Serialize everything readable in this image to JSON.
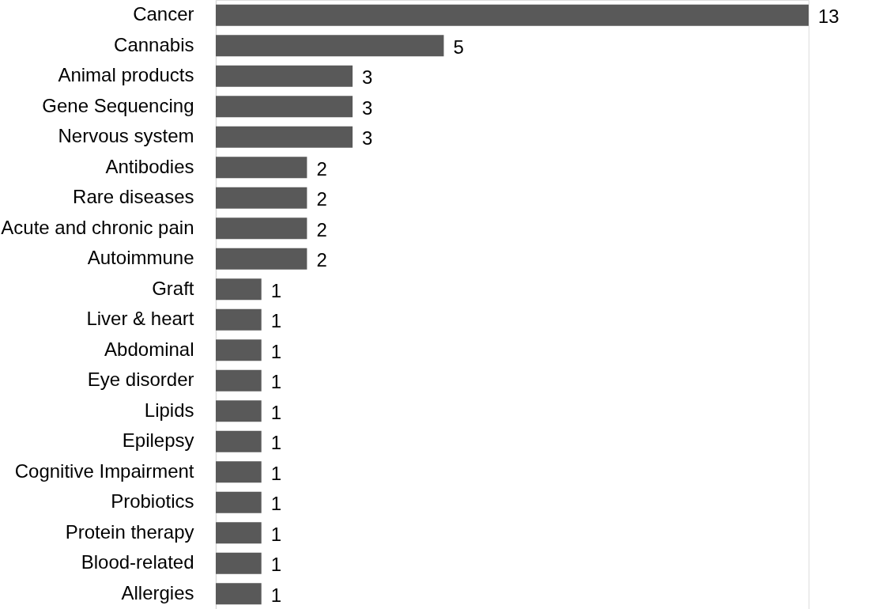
{
  "chart_data": {
    "type": "bar",
    "orientation": "horizontal",
    "data_labels": true,
    "grid": false,
    "categories": [
      "Cancer",
      "Cannabis",
      "Animal products",
      "Gene Sequencing",
      "Nervous system",
      "Antibodies",
      "Rare diseases",
      "Acute and chronic pain",
      "Autoimmune",
      "Graft",
      "Liver & heart",
      "Abdominal",
      "Eye disorder",
      "Lipids",
      "Epilepsy",
      "Cognitive Impairment",
      "Probiotics",
      "Protein therapy",
      "Blood-related",
      "Allergies"
    ],
    "values": [
      13,
      5,
      3,
      3,
      3,
      2,
      2,
      2,
      2,
      1,
      1,
      1,
      1,
      1,
      1,
      1,
      1,
      1,
      1,
      1
    ],
    "color": "#595959"
  }
}
